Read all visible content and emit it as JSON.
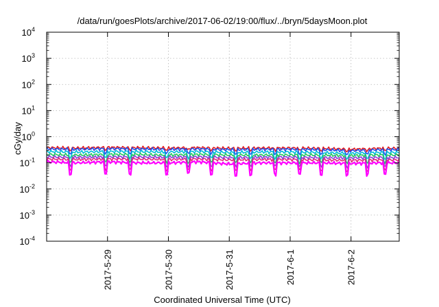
{
  "chart_data": {
    "type": "line",
    "title": "/data/run/goesPlots/archive/2017-06-02/19:00/flux/../bryn/5daysMoon.plot",
    "xlabel": "Coordinated Universal Time (UTC)",
    "ylabel": "cGy/day",
    "yscale": "log",
    "ylim": [
      0.0001,
      10000
    ],
    "xlim": [
      "2017-05-28 00:00",
      "2017-06-02 19:00"
    ],
    "grid": true,
    "yticks": [
      {
        "value": 0.0001,
        "base": "10",
        "exp": "-4"
      },
      {
        "value": 0.001,
        "base": "10",
        "exp": "-3"
      },
      {
        "value": 0.01,
        "base": "10",
        "exp": "-2"
      },
      {
        "value": 0.1,
        "base": "10",
        "exp": "-1"
      },
      {
        "value": 1,
        "base": "10",
        "exp": "0"
      },
      {
        "value": 10,
        "base": "10",
        "exp": "1"
      },
      {
        "value": 100,
        "base": "10",
        "exp": "2"
      },
      {
        "value": 1000,
        "base": "10",
        "exp": "3"
      },
      {
        "value": 10000,
        "base": "10",
        "exp": "4"
      }
    ],
    "xticks": [
      {
        "value": "2017-05-29",
        "label": "2017-5-29"
      },
      {
        "value": "2017-05-30",
        "label": "2017-5-30"
      },
      {
        "value": "2017-05-31",
        "label": "2017-5-31"
      },
      {
        "value": "2017-06-01",
        "label": "2017-6-1"
      },
      {
        "value": "2017-06-02",
        "label": "2017-6-2"
      }
    ],
    "x": [
      "2017-05-28 00:00",
      "2017-05-28 12:00",
      "2017-05-29 00:00",
      "2017-05-29 12:00",
      "2017-05-30 00:00",
      "2017-05-30 12:00",
      "2017-05-31 00:00",
      "2017-05-31 12:00",
      "2017-06-01 00:00",
      "2017-06-01 12:00",
      "2017-06-02 00:00",
      "2017-06-02 12:00",
      "2017-06-02 19:00"
    ],
    "series": [
      {
        "color": "#e0181f",
        "values": [
          0.38,
          0.37,
          0.39,
          0.38,
          0.37,
          0.38,
          0.36,
          0.37,
          0.37,
          0.36,
          0.33,
          0.36,
          0.36
        ]
      },
      {
        "color": "#1f4fe8",
        "values": [
          0.34,
          0.33,
          0.35,
          0.34,
          0.33,
          0.34,
          0.32,
          0.33,
          0.33,
          0.32,
          0.29,
          0.32,
          0.32
        ]
      },
      {
        "color": "#00bcd9",
        "values": [
          0.27,
          0.26,
          0.27,
          0.27,
          0.26,
          0.27,
          0.25,
          0.26,
          0.26,
          0.25,
          0.23,
          0.25,
          0.25
        ]
      },
      {
        "color": "#22c55e",
        "values": [
          0.21,
          0.2,
          0.21,
          0.21,
          0.2,
          0.21,
          0.2,
          0.2,
          0.2,
          0.2,
          0.19,
          0.2,
          0.2
        ]
      },
      {
        "color": "#8b3fd9",
        "values": [
          0.17,
          0.165,
          0.17,
          0.17,
          0.165,
          0.17,
          0.16,
          0.165,
          0.165,
          0.16,
          0.155,
          0.16,
          0.16
        ]
      },
      {
        "color": "#e0247a",
        "values": [
          0.14,
          0.135,
          0.14,
          0.14,
          0.135,
          0.14,
          0.13,
          0.135,
          0.135,
          0.13,
          0.125,
          0.13,
          0.13
        ]
      },
      {
        "color": "#ff00ff",
        "values": [
          0.11,
          0.1,
          0.11,
          0.1,
          0.1,
          0.11,
          0.09,
          0.1,
          0.1,
          0.1,
          0.095,
          0.1,
          0.1
        ]
      }
    ]
  }
}
